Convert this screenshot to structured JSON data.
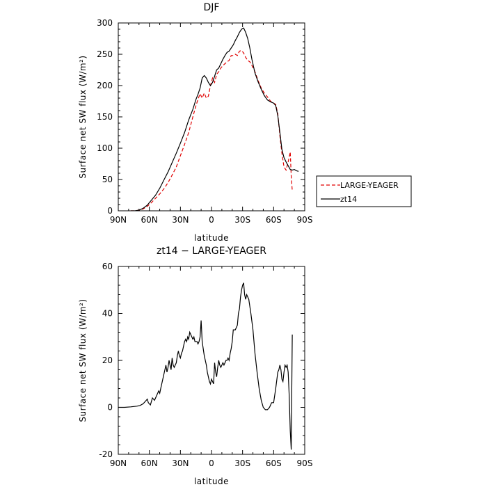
{
  "chart_data": [
    {
      "type": "line",
      "title": "DJF",
      "xlabel": "latitude",
      "ylabel": "Surface net SW flux (W/m²)",
      "xlim": [
        90,
        -90
      ],
      "ylim": [
        0,
        300
      ],
      "x_ticks": [
        90,
        60,
        30,
        0,
        -30,
        -60,
        -90
      ],
      "x_tick_labels": [
        "90N",
        "60N",
        "30N",
        "0",
        "30S",
        "60S",
        "90S"
      ],
      "y_ticks": [
        0,
        50,
        100,
        150,
        200,
        250,
        300
      ],
      "legend_position": "right",
      "colors": {
        "LARGE-YEAGER": "#e00000",
        "zt14": "#000000"
      },
      "series": [
        {
          "name": "LARGE-YEAGER",
          "style": "dashed",
          "x": [
            78,
            74,
            70,
            66,
            62,
            58,
            54,
            50,
            46,
            42,
            38,
            34,
            30,
            26,
            22,
            18,
            15,
            13,
            11,
            9,
            7,
            5,
            3,
            1,
            -1,
            -3,
            -5,
            -7,
            -9,
            -11,
            -13,
            -15,
            -17,
            -19,
            -21,
            -23,
            -25,
            -27,
            -29,
            -31,
            -33,
            -35,
            -37,
            -39,
            -42,
            -45,
            -48,
            -51,
            -54,
            -57,
            -60,
            -62,
            -64,
            -66,
            -68,
            -70,
            -72,
            -74,
            -76,
            -77,
            -78
          ],
          "values": [
            0,
            0,
            1,
            3,
            7,
            13,
            20,
            27,
            35,
            45,
            57,
            70,
            88,
            106,
            125,
            150,
            168,
            178,
            187,
            180,
            188,
            180,
            183,
            200,
            212,
            205,
            218,
            222,
            228,
            232,
            235,
            238,
            240,
            248,
            248,
            250,
            248,
            255,
            256,
            252,
            245,
            240,
            238,
            232,
            222,
            208,
            196,
            188,
            182,
            175,
            172,
            170,
            155,
            120,
            92,
            70,
            65,
            78,
            94,
            55,
            32
          ]
        },
        {
          "name": "zt14",
          "style": "solid",
          "x": [
            78,
            74,
            70,
            66,
            62,
            58,
            54,
            50,
            46,
            42,
            38,
            34,
            30,
            26,
            22,
            18,
            15,
            13,
            11,
            9,
            7,
            5,
            3,
            1,
            -1,
            -3,
            -5,
            -7,
            -9,
            -11,
            -13,
            -15,
            -17,
            -19,
            -21,
            -23,
            -25,
            -27,
            -29,
            -31,
            -33,
            -35,
            -37,
            -39,
            -42,
            -45,
            -48,
            -51,
            -54,
            -57,
            -60,
            -62,
            -64,
            -66,
            -68,
            -70,
            -72,
            -74,
            -76,
            -78,
            -80,
            -82,
            -84
          ],
          "values": [
            0,
            0,
            1,
            4,
            9,
            17,
            25,
            36,
            49,
            62,
            77,
            92,
            108,
            125,
            145,
            162,
            178,
            186,
            196,
            212,
            216,
            212,
            205,
            200,
            205,
            215,
            225,
            228,
            235,
            242,
            248,
            253,
            255,
            260,
            265,
            272,
            278,
            285,
            290,
            292,
            285,
            275,
            260,
            242,
            220,
            206,
            194,
            184,
            177,
            174,
            172,
            168,
            152,
            125,
            98,
            85,
            78,
            72,
            66,
            65,
            66,
            64,
            63
          ]
        }
      ]
    },
    {
      "type": "line",
      "title": "zt14 − LARGE-YEAGER",
      "xlabel": "latitude",
      "ylabel": "Surface net SW flux (W/m²)",
      "xlim": [
        90,
        -90
      ],
      "ylim": [
        -20,
        60
      ],
      "x_ticks": [
        90,
        60,
        30,
        0,
        -30,
        -60,
        -90
      ],
      "x_tick_labels": [
        "90N",
        "60N",
        "30N",
        "0",
        "30S",
        "60S",
        "90S"
      ],
      "y_ticks": [
        -20,
        0,
        20,
        40,
        60
      ],
      "series": [
        {
          "style": "solid",
          "x": [
            90,
            84,
            78,
            72,
            69,
            66,
            64,
            62,
            61,
            59,
            57,
            55,
            53,
            51,
            50,
            49,
            47,
            45,
            44,
            43,
            42,
            41,
            40,
            39,
            38,
            37,
            36,
            35,
            34,
            33,
            32,
            31,
            30,
            29,
            28,
            27,
            26,
            25,
            24,
            23,
            22,
            21,
            20,
            19,
            18,
            17,
            16,
            15,
            14,
            13,
            12,
            11,
            10,
            9,
            8,
            7,
            6,
            5,
            4,
            3,
            2,
            1,
            0,
            -1,
            -2,
            -3,
            -4,
            -5,
            -6,
            -7,
            -8,
            -9,
            -10,
            -11,
            -12,
            -13,
            -14,
            -15,
            -16,
            -17,
            -18,
            -19,
            -20,
            -21,
            -22,
            -23,
            -24,
            -25,
            -26,
            -27,
            -28,
            -29,
            -30,
            -31,
            -32,
            -33,
            -34,
            -35,
            -36,
            -38,
            -40,
            -42,
            -44,
            -46,
            -48,
            -50,
            -52,
            -54,
            -56,
            -58,
            -60,
            -62,
            -64,
            -65,
            -66,
            -67,
            -68,
            -69,
            -70,
            -71,
            -72,
            -73,
            -74,
            -75,
            -76,
            -77,
            -78
          ],
          "values": [
            0,
            0,
            0.2,
            0.5,
            0.8,
            1.5,
            2.5,
            3.5,
            2,
            1,
            4,
            3,
            5,
            7,
            6,
            8,
            12,
            16,
            18,
            15,
            17,
            20,
            18,
            16,
            21,
            18,
            17,
            18,
            19,
            22,
            24,
            22,
            21,
            23,
            24,
            26,
            28,
            29,
            28,
            30,
            29,
            32,
            31,
            30,
            29,
            30,
            28,
            28,
            28,
            27,
            28,
            30,
            37,
            28,
            25,
            22,
            20,
            18,
            15,
            13,
            11,
            10,
            12,
            11,
            10,
            19,
            15,
            13,
            17,
            20,
            18,
            17,
            18,
            19,
            18,
            19,
            20,
            20,
            21,
            20,
            23,
            25,
            28,
            33,
            33,
            33,
            34,
            35,
            40,
            42,
            47,
            50,
            52,
            53,
            48,
            46,
            48,
            47,
            46,
            40,
            33,
            23,
            15,
            8,
            3,
            0,
            -1,
            -1,
            0,
            2,
            2,
            8,
            15,
            16,
            18,
            16,
            12,
            11,
            15,
            18,
            17,
            18,
            15,
            5,
            -10,
            -18,
            31
          ]
        }
      ]
    }
  ]
}
